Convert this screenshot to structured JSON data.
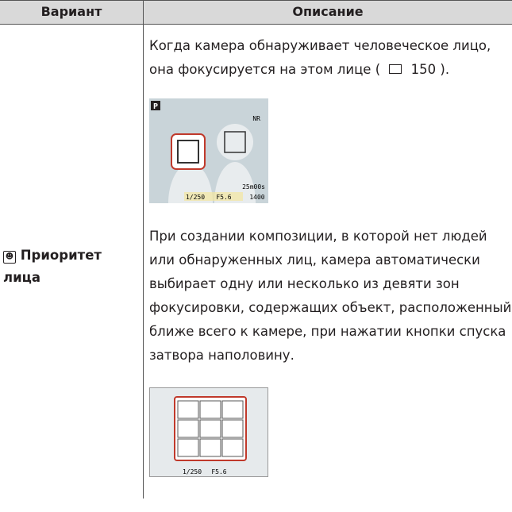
{
  "header": {
    "col1": "Вариант",
    "col2": "Описание"
  },
  "row": {
    "option": [
      "Приоритет",
      "лица"
    ],
    "paragraph1": {
      "lines": [
        "Когда камера обнаруживает человеческое лицо,",
        "она фокусируется на этом лице ("
      ],
      "page_ref": "150",
      "after": ")."
    },
    "screen1": {
      "mode": "P",
      "shutter": "1/250",
      "aperture": "F5.6",
      "shots": "1400",
      "time": "25m00s",
      "nr": "NR"
    },
    "paragraph2": {
      "lines": [
        "При создании композиции, в которой нет людей",
        "или обнаруженных лиц, камера автоматически",
        "выбирает одну или несколько из девяти зон",
        "фокусировки, содержащих объект, расположенный",
        "ближе всего к камере, при нажатии кнопки спуска",
        "затвора наполовину."
      ]
    },
    "screen2": {
      "shutter": "1/250",
      "aperture": "F5.6"
    }
  }
}
